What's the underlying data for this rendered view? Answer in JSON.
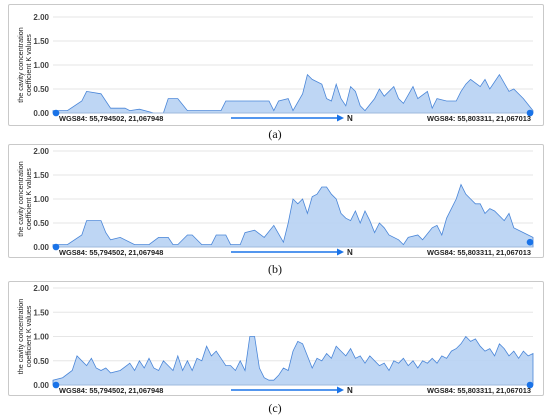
{
  "colors": {
    "area_fill": "#b7d2f3",
    "area_stroke": "#4a86d8",
    "marker": "#1a73e8",
    "arrow": "#1a73e8",
    "axis_text": "#444444",
    "grid": "#e6e6e6"
  },
  "chart_data": [
    {
      "type": "area",
      "caption": "(a)",
      "ylabel": "the cavity concentration coefficient K values",
      "ylim": [
        0,
        2.0
      ],
      "yticks": [
        "2.00",
        "1.50",
        "1.00",
        "0.50",
        "0.00"
      ],
      "start_label": "WGS84: 55,794502, 21,067948",
      "end_label": "WGS84: 55,803311, 21,067013",
      "direction_label": "N",
      "x": [
        0,
        3,
        6,
        7,
        10,
        12,
        15,
        16,
        18,
        21,
        23,
        24,
        26,
        28,
        30,
        35,
        36,
        45,
        46,
        47,
        49,
        50,
        52,
        53,
        54,
        56,
        57,
        58,
        59,
        60,
        61,
        62,
        63,
        64,
        65,
        67,
        68,
        69,
        71,
        72,
        73,
        75,
        76,
        78,
        79,
        80,
        82,
        84,
        85,
        86,
        87,
        89,
        90,
        91,
        93,
        95,
        96,
        98,
        100
      ],
      "y": [
        0.05,
        0.05,
        0.25,
        0.45,
        0.4,
        0.1,
        0.1,
        0.05,
        0.08,
        0.0,
        0.0,
        0.3,
        0.3,
        0.05,
        0.05,
        0.05,
        0.25,
        0.25,
        0.05,
        0.25,
        0.3,
        0.05,
        0.4,
        0.8,
        0.7,
        0.6,
        0.3,
        0.25,
        0.6,
        0.3,
        0.15,
        0.55,
        0.45,
        0.15,
        0.05,
        0.3,
        0.5,
        0.35,
        0.55,
        0.3,
        0.2,
        0.55,
        0.3,
        0.45,
        0.1,
        0.3,
        0.25,
        0.25,
        0.45,
        0.6,
        0.7,
        0.55,
        0.7,
        0.5,
        0.8,
        0.45,
        0.5,
        0.3,
        0.05
      ],
      "start_marker": {
        "x": 0,
        "y": 0.0
      },
      "end_marker": {
        "x": 100,
        "y": 0.0
      }
    },
    {
      "type": "area",
      "caption": "(b)",
      "ylabel": "the cavity concentration coefficient K values",
      "ylim": [
        0,
        2.0
      ],
      "yticks": [
        "2.00",
        "1.50",
        "1.00",
        "0.50",
        "0.00"
      ],
      "start_label": "WGS84: 55,794502, 21,067948",
      "end_label": "WGS84: 55,803311, 21,067013",
      "direction_label": "N",
      "x": [
        0,
        3,
        6,
        7,
        10,
        11,
        12,
        14,
        17,
        18,
        20,
        22,
        24,
        25,
        26,
        28,
        29,
        31,
        33,
        34,
        36,
        37,
        39,
        40,
        42,
        44,
        46,
        48,
        49,
        50,
        51,
        52,
        53,
        54,
        55,
        56,
        57,
        58,
        59,
        60,
        61,
        62,
        63,
        64,
        65,
        66,
        67,
        68,
        69,
        70,
        72,
        73,
        74,
        76,
        77,
        79,
        80,
        81,
        82,
        84,
        85,
        86,
        87,
        88,
        89,
        90,
        91,
        92,
        94,
        95,
        96,
        98,
        100
      ],
      "y": [
        0.05,
        0.05,
        0.25,
        0.55,
        0.55,
        0.3,
        0.15,
        0.2,
        0.05,
        0.05,
        0.05,
        0.2,
        0.2,
        0.05,
        0.05,
        0.25,
        0.25,
        0.05,
        0.05,
        0.25,
        0.25,
        0.05,
        0.05,
        0.3,
        0.35,
        0.2,
        0.45,
        0.1,
        0.5,
        1.0,
        0.9,
        1.0,
        0.7,
        1.05,
        1.1,
        1.25,
        1.25,
        1.1,
        1.0,
        0.7,
        0.6,
        0.55,
        0.75,
        0.5,
        0.75,
        0.55,
        0.3,
        0.5,
        0.4,
        0.25,
        0.15,
        0.05,
        0.2,
        0.25,
        0.15,
        0.4,
        0.45,
        0.25,
        0.6,
        1.0,
        1.3,
        1.1,
        1.0,
        0.9,
        0.9,
        0.7,
        0.8,
        0.75,
        0.55,
        0.7,
        0.4,
        0.3,
        0.2
      ],
      "start_marker": {
        "x": 0,
        "y": 0.0
      },
      "end_marker": {
        "x": 100,
        "y": 0.1
      }
    },
    {
      "type": "area",
      "caption": "(c)",
      "ylabel": "the cavity concentration coefficient K values",
      "ylim": [
        0,
        2.0
      ],
      "yticks": [
        "2.00",
        "1.50",
        "1.00",
        "0.50",
        "0.00"
      ],
      "start_label": "WGS84: 55,794502, 21,067948",
      "end_label": "WGS84: 55,803311, 21,067013",
      "direction_label": "N",
      "x": [
        0,
        2,
        4,
        5,
        6,
        7,
        8,
        9,
        10,
        11,
        12,
        14,
        16,
        17,
        18,
        19,
        20,
        21,
        22,
        23,
        24,
        25,
        26,
        27,
        28,
        29,
        30,
        31,
        32,
        33,
        34,
        35,
        36,
        37,
        38,
        39,
        40,
        41,
        42,
        43,
        44,
        45,
        46,
        47,
        48,
        49,
        50,
        51,
        52,
        53,
        54,
        55,
        56,
        57,
        58,
        59,
        60,
        61,
        62,
        63,
        64,
        65,
        66,
        67,
        68,
        69,
        70,
        71,
        72,
        73,
        74,
        75,
        76,
        77,
        78,
        79,
        80,
        81,
        82,
        83,
        84,
        85,
        86,
        87,
        88,
        89,
        90,
        91,
        92,
        93,
        94,
        95,
        96,
        97,
        98,
        99,
        100
      ],
      "y": [
        0.1,
        0.15,
        0.3,
        0.6,
        0.5,
        0.4,
        0.55,
        0.35,
        0.3,
        0.35,
        0.25,
        0.3,
        0.45,
        0.3,
        0.5,
        0.35,
        0.55,
        0.35,
        0.3,
        0.5,
        0.4,
        0.3,
        0.6,
        0.3,
        0.5,
        0.3,
        0.55,
        0.5,
        0.8,
        0.6,
        0.7,
        0.55,
        0.4,
        0.4,
        0.3,
        0.5,
        0.3,
        1.0,
        1.0,
        0.35,
        0.15,
        0.1,
        0.1,
        0.2,
        0.35,
        0.3,
        0.7,
        0.9,
        0.85,
        0.6,
        0.35,
        0.55,
        0.5,
        0.65,
        0.55,
        0.8,
        0.7,
        0.6,
        0.75,
        0.55,
        0.6,
        0.45,
        0.6,
        0.5,
        0.4,
        0.45,
        0.3,
        0.5,
        0.45,
        0.55,
        0.4,
        0.5,
        0.35,
        0.5,
        0.45,
        0.55,
        0.45,
        0.6,
        0.55,
        0.7,
        0.75,
        0.85,
        1.0,
        0.9,
        0.95,
        0.8,
        0.7,
        0.75,
        0.6,
        0.85,
        0.75,
        0.6,
        0.7,
        0.55,
        0.7,
        0.6,
        0.65
      ],
      "start_marker": {
        "x": 0,
        "y": 0.0
      },
      "end_marker": {
        "x": 100,
        "y": 0.0
      }
    }
  ]
}
